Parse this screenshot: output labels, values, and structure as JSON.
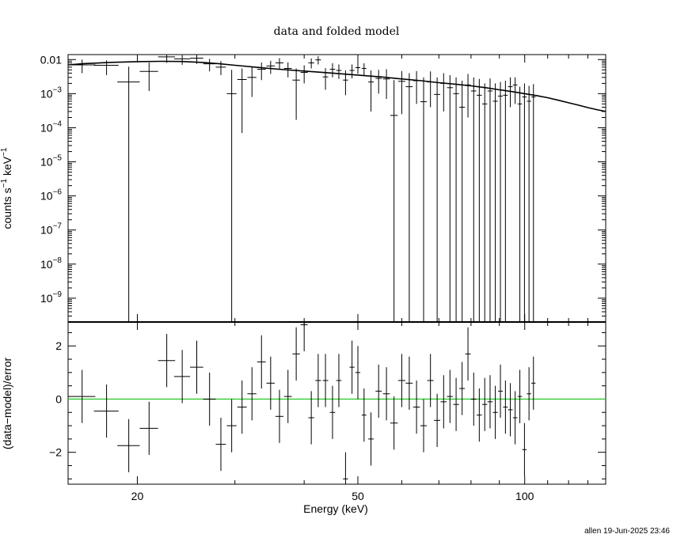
{
  "title": "data and folded model",
  "xlabel": "Energy (keV)",
  "stamp": "allen 19-Jun-2025 23:46",
  "colors": {
    "axes": "#000000",
    "zero_line": "#33cc33"
  },
  "chart_data": [
    {
      "type": "scatter",
      "panel": "top",
      "xscale": "log",
      "yscale": "log",
      "xlim": [
        15,
        140
      ],
      "ylim": [
        2e-10,
        0.014
      ],
      "ylabel_parts": [
        "counts s",
        "−1",
        " keV",
        "−1"
      ],
      "yticks": [
        {
          "value": 0.01,
          "label": "0.01"
        },
        {
          "value": 0.001,
          "base": "10",
          "exp": "−3"
        },
        {
          "value": 0.0001,
          "base": "10",
          "exp": "−4"
        },
        {
          "value": 1e-05,
          "base": "10",
          "exp": "−5"
        },
        {
          "value": 1e-06,
          "base": "10",
          "exp": "−6"
        },
        {
          "value": 1e-07,
          "base": "10",
          "exp": "−7"
        },
        {
          "value": 1e-08,
          "base": "10",
          "exp": "−8"
        },
        {
          "value": 1e-09,
          "base": "10",
          "exp": "−9"
        }
      ],
      "points": [
        {
          "x": 15.9,
          "dx": 0.9,
          "y": 0.007,
          "lo": 0.004,
          "hi": 0.01
        },
        {
          "x": 17.6,
          "dx": 0.9,
          "y": 0.0068,
          "lo": 0.0035,
          "hi": 0.0095
        },
        {
          "x": 19.3,
          "dx": 0.9,
          "y": 0.0022,
          "lo": 2e-10,
          "hi": 0.0062
        },
        {
          "x": 21.0,
          "dx": 0.8,
          "y": 0.0045,
          "lo": 0.0012,
          "hi": 0.0082
        },
        {
          "x": 22.6,
          "dx": 0.8,
          "y": 0.012,
          "lo": 0.008,
          "hi": 0.014
        },
        {
          "x": 24.1,
          "dx": 0.8,
          "y": 0.0105,
          "lo": 0.007,
          "hi": 0.0135
        },
        {
          "x": 25.6,
          "dx": 0.7,
          "y": 0.011,
          "lo": 0.0075,
          "hi": 0.014
        },
        {
          "x": 27.0,
          "dx": 0.7,
          "y": 0.0075,
          "lo": 0.0045,
          "hi": 0.0105
        },
        {
          "x": 28.3,
          "dx": 0.6,
          "y": 0.006,
          "lo": 0.0035,
          "hi": 0.009
        },
        {
          "x": 29.6,
          "dx": 0.6,
          "y": 0.001,
          "lo": 2e-10,
          "hi": 0.005
        },
        {
          "x": 30.9,
          "dx": 0.6,
          "y": 0.0026,
          "lo": 7e-05,
          "hi": 0.0055
        },
        {
          "x": 32.2,
          "dx": 0.6,
          "y": 0.003,
          "lo": 0.0008,
          "hi": 0.006
        },
        {
          "x": 33.5,
          "dx": 0.6,
          "y": 0.0052,
          "lo": 0.0025,
          "hi": 0.0082
        },
        {
          "x": 34.8,
          "dx": 0.6,
          "y": 0.0065,
          "lo": 0.0038,
          "hi": 0.0092
        },
        {
          "x": 36.1,
          "dx": 0.6,
          "y": 0.008,
          "lo": 0.0052,
          "hi": 0.011
        },
        {
          "x": 37.4,
          "dx": 0.6,
          "y": 0.0055,
          "lo": 0.003,
          "hi": 0.0083
        },
        {
          "x": 38.7,
          "dx": 0.6,
          "y": 0.0025,
          "lo": 0.00017,
          "hi": 0.0055
        },
        {
          "x": 40.0,
          "dx": 0.6,
          "y": 0.0042,
          "lo": 0.002,
          "hi": 0.0068
        },
        {
          "x": 41.2,
          "dx": 0.5,
          "y": 0.008,
          "lo": 0.0055,
          "hi": 0.0108
        },
        {
          "x": 42.4,
          "dx": 0.5,
          "y": 0.0098,
          "lo": 0.0072,
          "hi": 0.0125
        },
        {
          "x": 43.7,
          "dx": 0.5,
          "y": 0.0031,
          "lo": 0.0013,
          "hi": 0.0056
        },
        {
          "x": 45.0,
          "dx": 0.5,
          "y": 0.0052,
          "lo": 0.003,
          "hi": 0.0078
        },
        {
          "x": 46.2,
          "dx": 0.5,
          "y": 0.0048,
          "lo": 0.0027,
          "hi": 0.0072
        },
        {
          "x": 47.5,
          "dx": 0.5,
          "y": 0.0025,
          "lo": 0.0009,
          "hi": 0.0048
        },
        {
          "x": 48.8,
          "dx": 0.5,
          "y": 0.0048,
          "lo": 0.0028,
          "hi": 0.0072
        },
        {
          "x": 50.0,
          "dx": 0.5,
          "y": 0.0058,
          "lo": 0.0038,
          "hi": 0.0082
        },
        {
          "x": 51.3,
          "dx": 0.5,
          "y": 0.0055,
          "lo": 0.0035,
          "hi": 0.0078
        },
        {
          "x": 52.8,
          "dx": 0.6,
          "y": 0.0022,
          "lo": 0.0003,
          "hi": 0.0048
        },
        {
          "x": 54.5,
          "dx": 0.7,
          "y": 0.0028,
          "lo": 0.001,
          "hi": 0.005
        },
        {
          "x": 56.3,
          "dx": 0.8,
          "y": 0.0027,
          "lo": 0.0007,
          "hi": 0.0052
        },
        {
          "x": 58.1,
          "dx": 0.9,
          "y": 0.00023,
          "lo": 2e-10,
          "hi": 0.0025
        },
        {
          "x": 60.0,
          "dx": 0.9,
          "y": 0.0023,
          "lo": 0.00025,
          "hi": 0.0046
        },
        {
          "x": 61.9,
          "dx": 0.9,
          "y": 0.0016,
          "lo": 2e-10,
          "hi": 0.004
        },
        {
          "x": 63.8,
          "dx": 0.9,
          "y": 0.0024,
          "lo": 0.0005,
          "hi": 0.0046
        },
        {
          "x": 65.7,
          "dx": 0.9,
          "y": 0.00058,
          "lo": 2e-10,
          "hi": 0.003
        },
        {
          "x": 67.6,
          "dx": 0.9,
          "y": 0.0022,
          "lo": 0.0004,
          "hi": 0.0045
        },
        {
          "x": 69.5,
          "dx": 0.9,
          "y": 0.00095,
          "lo": 2e-10,
          "hi": 0.003
        },
        {
          "x": 71.4,
          "dx": 0.9,
          "y": 0.002,
          "lo": 0.0003,
          "hi": 0.004
        },
        {
          "x": 73.3,
          "dx": 0.9,
          "y": 0.0015,
          "lo": 2e-10,
          "hi": 0.0035
        },
        {
          "x": 75.2,
          "dx": 0.9,
          "y": 0.001,
          "lo": 2e-10,
          "hi": 0.003
        },
        {
          "x": 77.1,
          "dx": 0.9,
          "y": 0.0004,
          "lo": 2e-10,
          "hi": 0.0024
        },
        {
          "x": 79.0,
          "dx": 0.9,
          "y": 0.0018,
          "lo": 0.0002,
          "hi": 0.0038
        },
        {
          "x": 80.9,
          "dx": 0.9,
          "y": 0.0012,
          "lo": 2e-10,
          "hi": 0.003
        },
        {
          "x": 82.8,
          "dx": 0.9,
          "y": 0.0009,
          "lo": 2e-10,
          "hi": 0.0027
        },
        {
          "x": 84.7,
          "dx": 0.9,
          "y": 0.0005,
          "lo": 2e-10,
          "hi": 0.002
        },
        {
          "x": 86.6,
          "dx": 0.9,
          "y": 0.0012,
          "lo": 2e-10,
          "hi": 0.0028
        },
        {
          "x": 88.5,
          "dx": 0.9,
          "y": 0.0006,
          "lo": 2e-10,
          "hi": 0.002
        },
        {
          "x": 90.4,
          "dx": 0.9,
          "y": 0.00085,
          "lo": 2e-10,
          "hi": 0.0022
        },
        {
          "x": 92.3,
          "dx": 0.9,
          "y": 0.0009,
          "lo": 2e-10,
          "hi": 0.0024
        },
        {
          "x": 94.2,
          "dx": 0.9,
          "y": 0.0016,
          "lo": 0.0004,
          "hi": 0.003
        },
        {
          "x": 96.1,
          "dx": 0.9,
          "y": 0.0018,
          "lo": 0.0005,
          "hi": 0.003
        },
        {
          "x": 98.0,
          "dx": 0.9,
          "y": 0.0005,
          "lo": 2e-10,
          "hi": 0.0016
        },
        {
          "x": 99.9,
          "dx": 0.9,
          "y": 0.0008,
          "lo": 2e-10,
          "hi": 0.002
        },
        {
          "x": 101.8,
          "dx": 0.9,
          "y": 0.0006,
          "lo": 2e-10,
          "hi": 0.0017
        },
        {
          "x": 103.7,
          "dx": 0.9,
          "y": 0.0008,
          "lo": 2e-10,
          "hi": 0.0019
        }
      ],
      "model": [
        {
          "x": 15.0,
          "y": 0.007
        },
        {
          "x": 16.0,
          "y": 0.0076
        },
        {
          "x": 18.0,
          "y": 0.0083
        },
        {
          "x": 20.0,
          "y": 0.0087
        },
        {
          "x": 22.0,
          "y": 0.0089
        },
        {
          "x": 24.0,
          "y": 0.0088
        },
        {
          "x": 26.0,
          "y": 0.0083
        },
        {
          "x": 28.0,
          "y": 0.0076
        },
        {
          "x": 30.0,
          "y": 0.0068
        },
        {
          "x": 33.0,
          "y": 0.0059
        },
        {
          "x": 36.0,
          "y": 0.0052
        },
        {
          "x": 40.0,
          "y": 0.0046
        },
        {
          "x": 45.0,
          "y": 0.004
        },
        {
          "x": 50.0,
          "y": 0.0035
        },
        {
          "x": 55.0,
          "y": 0.0031
        },
        {
          "x": 60.0,
          "y": 0.0027
        },
        {
          "x": 65.0,
          "y": 0.0024
        },
        {
          "x": 70.0,
          "y": 0.0021
        },
        {
          "x": 75.0,
          "y": 0.0019
        },
        {
          "x": 80.0,
          "y": 0.0017
        },
        {
          "x": 85.0,
          "y": 0.0015
        },
        {
          "x": 90.0,
          "y": 0.0013
        },
        {
          "x": 95.0,
          "y": 0.00115
        },
        {
          "x": 100.0,
          "y": 0.001
        },
        {
          "x": 105.0,
          "y": 0.00088
        },
        {
          "x": 110.0,
          "y": 0.00076
        },
        {
          "x": 115.0,
          "y": 0.00064
        },
        {
          "x": 120.0,
          "y": 0.00054
        },
        {
          "x": 125.0,
          "y": 0.00046
        },
        {
          "x": 130.0,
          "y": 0.00039
        },
        {
          "x": 135.0,
          "y": 0.00034
        },
        {
          "x": 140.0,
          "y": 0.0003
        }
      ]
    },
    {
      "type": "scatter",
      "panel": "bottom",
      "xscale": "log",
      "yscale": "linear",
      "xlim": [
        15,
        140
      ],
      "ylim": [
        -3.2,
        2.9
      ],
      "ylabel": "(data−model)/error",
      "xticks": [
        {
          "value": 20,
          "label": "20"
        },
        {
          "value": 50,
          "label": "50"
        },
        {
          "value": 100,
          "label": "100"
        }
      ],
      "yticks": [
        {
          "value": 2,
          "label": "2"
        },
        {
          "value": 0,
          "label": "0"
        },
        {
          "value": -2,
          "label": "−2"
        }
      ],
      "points": [
        {
          "x": 15.9,
          "dx": 0.9,
          "y": 0.1,
          "e": 1.0
        },
        {
          "x": 17.6,
          "dx": 0.9,
          "y": -0.45,
          "e": 1.0
        },
        {
          "x": 19.3,
          "dx": 0.9,
          "y": -1.75,
          "e": 1.0
        },
        {
          "x": 21.0,
          "dx": 0.8,
          "y": -1.1,
          "e": 1.0
        },
        {
          "x": 22.6,
          "dx": 0.8,
          "y": 1.45,
          "e": 1.0
        },
        {
          "x": 24.1,
          "dx": 0.8,
          "y": 0.85,
          "e": 1.0
        },
        {
          "x": 25.6,
          "dx": 0.7,
          "y": 1.2,
          "e": 1.0
        },
        {
          "x": 27.0,
          "dx": 0.7,
          "y": 0.0,
          "e": 1.0
        },
        {
          "x": 28.3,
          "dx": 0.6,
          "y": -1.7,
          "e": 1.0
        },
        {
          "x": 29.6,
          "dx": 0.6,
          "y": -1.0,
          "e": 1.0
        },
        {
          "x": 30.9,
          "dx": 0.6,
          "y": -0.3,
          "e": 1.0
        },
        {
          "x": 32.2,
          "dx": 0.6,
          "y": 0.2,
          "e": 1.0
        },
        {
          "x": 33.5,
          "dx": 0.6,
          "y": 1.4,
          "e": 1.0
        },
        {
          "x": 34.8,
          "dx": 0.6,
          "y": 0.6,
          "e": 1.0
        },
        {
          "x": 36.1,
          "dx": 0.6,
          "y": -0.65,
          "e": 1.0
        },
        {
          "x": 37.4,
          "dx": 0.6,
          "y": 0.1,
          "e": 1.0
        },
        {
          "x": 38.7,
          "dx": 0.6,
          "y": 1.7,
          "e": 1.0
        },
        {
          "x": 40.0,
          "dx": 0.6,
          "y": 2.8,
          "e": 1.0
        },
        {
          "x": 41.2,
          "dx": 0.5,
          "y": -0.7,
          "e": 1.0
        },
        {
          "x": 42.4,
          "dx": 0.5,
          "y": 0.7,
          "e": 1.0
        },
        {
          "x": 43.7,
          "dx": 0.5,
          "y": 0.7,
          "e": 1.0
        },
        {
          "x": 45.0,
          "dx": 0.5,
          "y": -0.5,
          "e": 1.0
        },
        {
          "x": 46.2,
          "dx": 0.5,
          "y": 0.7,
          "e": 1.0
        },
        {
          "x": 47.5,
          "dx": 0.5,
          "y": -3.0,
          "e": 1.0
        },
        {
          "x": 48.8,
          "dx": 0.5,
          "y": 1.2,
          "e": 1.0
        },
        {
          "x": 50.0,
          "dx": 0.5,
          "y": 1.0,
          "e": 1.0
        },
        {
          "x": 51.3,
          "dx": 0.5,
          "y": -0.6,
          "e": 1.0
        },
        {
          "x": 52.8,
          "dx": 0.6,
          "y": -1.5,
          "e": 1.0
        },
        {
          "x": 54.5,
          "dx": 0.7,
          "y": 0.3,
          "e": 1.0
        },
        {
          "x": 56.3,
          "dx": 0.8,
          "y": 0.2,
          "e": 1.0
        },
        {
          "x": 58.1,
          "dx": 0.9,
          "y": -0.9,
          "e": 1.0
        },
        {
          "x": 60.0,
          "dx": 0.9,
          "y": 0.7,
          "e": 1.0
        },
        {
          "x": 61.9,
          "dx": 0.9,
          "y": 0.6,
          "e": 1.0
        },
        {
          "x": 63.8,
          "dx": 0.9,
          "y": -0.3,
          "e": 1.0
        },
        {
          "x": 65.7,
          "dx": 0.9,
          "y": -1.0,
          "e": 1.0
        },
        {
          "x": 67.6,
          "dx": 0.9,
          "y": 0.7,
          "e": 1.0
        },
        {
          "x": 69.5,
          "dx": 0.9,
          "y": -0.8,
          "e": 1.0
        },
        {
          "x": 71.4,
          "dx": 0.9,
          "y": -0.1,
          "e": 1.0
        },
        {
          "x": 73.3,
          "dx": 0.9,
          "y": 0.1,
          "e": 1.0
        },
        {
          "x": 75.2,
          "dx": 0.9,
          "y": -0.2,
          "e": 1.0
        },
        {
          "x": 77.1,
          "dx": 0.9,
          "y": 0.4,
          "e": 1.0
        },
        {
          "x": 79.0,
          "dx": 0.9,
          "y": 1.7,
          "e": 1.0
        },
        {
          "x": 80.9,
          "dx": 0.9,
          "y": 0.0,
          "e": 1.0
        },
        {
          "x": 82.8,
          "dx": 0.9,
          "y": -0.6,
          "e": 1.0
        },
        {
          "x": 84.7,
          "dx": 0.9,
          "y": -0.2,
          "e": 1.0
        },
        {
          "x": 86.6,
          "dx": 0.9,
          "y": -0.1,
          "e": 1.0
        },
        {
          "x": 88.5,
          "dx": 0.9,
          "y": -0.5,
          "e": 1.0
        },
        {
          "x": 90.4,
          "dx": 0.9,
          "y": 0.3,
          "e": 1.0
        },
        {
          "x": 92.3,
          "dx": 0.9,
          "y": -0.3,
          "e": 1.0
        },
        {
          "x": 94.2,
          "dx": 0.9,
          "y": -0.4,
          "e": 1.0
        },
        {
          "x": 96.1,
          "dx": 0.9,
          "y": -0.7,
          "e": 1.0
        },
        {
          "x": 98.0,
          "dx": 0.9,
          "y": 0.1,
          "e": 1.0
        },
        {
          "x": 99.9,
          "dx": 0.9,
          "y": -1.9,
          "e": 1.0
        },
        {
          "x": 101.8,
          "dx": 0.9,
          "y": 0.2,
          "e": 1.0
        },
        {
          "x": 103.7,
          "dx": 0.9,
          "y": 0.6,
          "e": 1.0
        }
      ]
    }
  ]
}
